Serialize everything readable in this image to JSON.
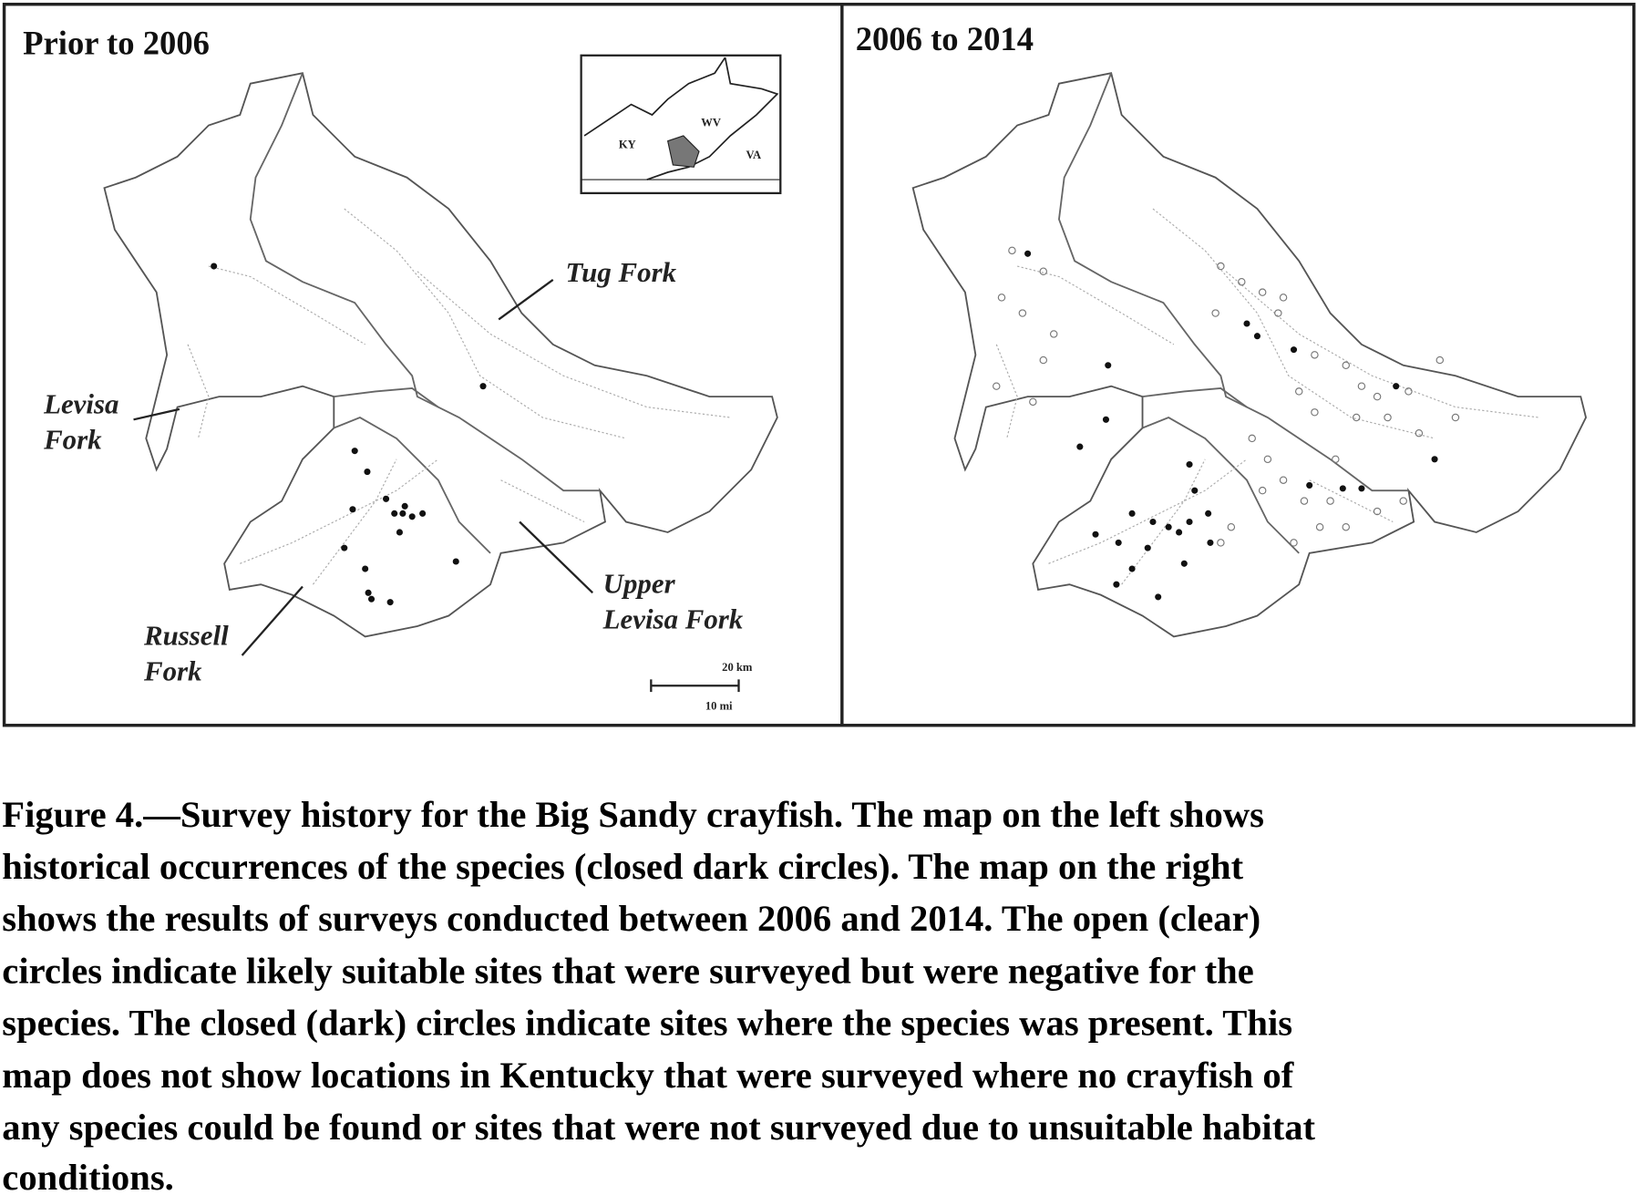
{
  "panels": [
    {
      "title": "Prior to 2006",
      "labels": [
        {
          "lines": [
            "Tug Fork"
          ]
        },
        {
          "lines": [
            "Levisa",
            "Fork"
          ]
        },
        {
          "lines": [
            "Upper",
            "Levisa Fork"
          ]
        },
        {
          "lines": [
            "Russell",
            "Fork"
          ]
        }
      ],
      "inset": {
        "labels": [
          "KY",
          "WV",
          "VA"
        ]
      },
      "scale_bar": {
        "labels": [
          "20 km",
          "10 mi"
        ]
      }
    },
    {
      "title": "2006 to 2014"
    }
  ],
  "caption": {
    "lines": [
      "Figure 4.—Survey history for the Big Sandy crayfish.  The map on the left shows",
      "historical occurrences of the species (closed dark circles).  The map on the right",
      "shows the results of surveys conducted between 2006 and 2014.  The open (clear)",
      "circles indicate likely suitable sites that were surveyed but were negative for the",
      "species.  The closed (dark) circles indicate sites where the species was present.  This",
      "map does not show locations in Kentucky that were surveyed where no crayfish of",
      "any species could be found or sites that were not surveyed due to unsuitable habitat",
      "conditions."
    ]
  }
}
